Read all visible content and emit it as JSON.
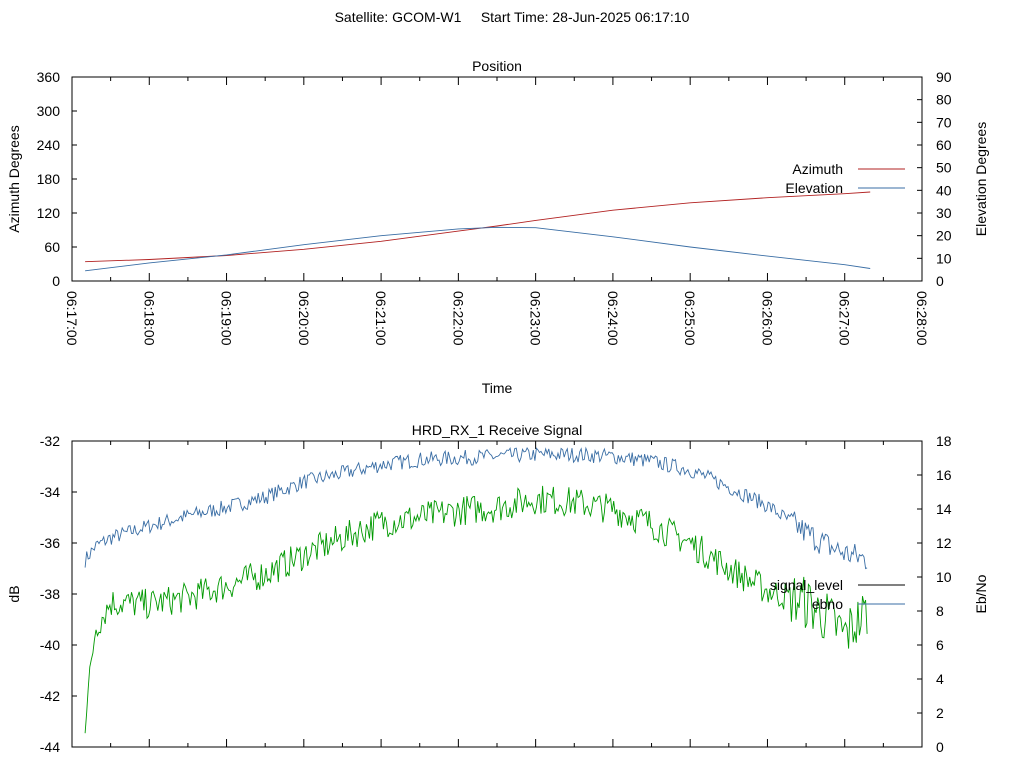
{
  "page": {
    "title": "Satellite: GCOM-W1     Start Time: 28-Jun-2025 06:17:10"
  },
  "chart_data": [
    {
      "type": "line",
      "title": "Position",
      "xlabel": "Time",
      "ylabel": "Azimuth Degrees",
      "y2label": "Elevation Degrees",
      "x_ticks": [
        "06:17:00",
        "06:18:00",
        "06:19:00",
        "06:20:00",
        "06:21:00",
        "06:22:00",
        "06:23:00",
        "06:24:00",
        "06:25:00",
        "06:26:00",
        "06:27:00",
        "06:28:00"
      ],
      "y_ticks": [
        "0",
        "60",
        "120",
        "180",
        "240",
        "300",
        "360"
      ],
      "y2_ticks": [
        "0",
        "10",
        "20",
        "30",
        "40",
        "50",
        "60",
        "70",
        "80",
        "90"
      ],
      "xlim_minutes": [
        0,
        11
      ],
      "ylim": [
        0,
        360
      ],
      "y2lim": [
        0,
        90
      ],
      "grid": false,
      "legend_position": "right",
      "x_minutes": [
        0.17,
        1,
        2,
        3,
        4,
        5,
        5.5,
        6,
        7,
        8,
        9,
        10,
        10.33
      ],
      "series": [
        {
          "name": "Azimuth",
          "axis": "left",
          "color": "#b22222",
          "values": [
            34,
            38,
            45,
            56,
            70,
            88,
            97,
            107,
            125,
            138,
            147,
            154,
            157
          ]
        },
        {
          "name": "Elevation",
          "axis": "right",
          "color": "#3a6ea5",
          "values": [
            4.5,
            8,
            11.5,
            16,
            20,
            23,
            23.7,
            23.5,
            19.5,
            15,
            11,
            7.2,
            5.5
          ]
        }
      ]
    },
    {
      "type": "line",
      "title": "HRD_RX_1 Receive Signal",
      "ylabel": "dB",
      "y2label": "Eb/No",
      "y_ticks": [
        "-32",
        "-34",
        "-36",
        "-38",
        "-40",
        "-42",
        "-44"
      ],
      "y2_ticks": [
        "0",
        "2",
        "4",
        "6",
        "8",
        "10",
        "12",
        "14",
        "16",
        "18"
      ],
      "xlim_minutes": [
        0,
        11
      ],
      "ylim": [
        -44,
        -32
      ],
      "y2lim": [
        0,
        18
      ],
      "grid": false,
      "legend_position": "right",
      "x_minutes": [
        0.17,
        0.3,
        0.5,
        1,
        1.5,
        2,
        2.5,
        3,
        3.5,
        4,
        4.5,
        5,
        5.5,
        6,
        6.5,
        7,
        7.5,
        8,
        8.5,
        9,
        9.5,
        9.8,
        10,
        10.3
      ],
      "series": [
        {
          "name": "signal_level",
          "axis": "left",
          "color": "#000000",
          "values": []
        },
        {
          "name": "ebno",
          "axis": "right",
          "color": "#3a6ea5",
          "values": [
            11,
            11.8,
            12.3,
            13,
            13.6,
            14.1,
            14.7,
            15.6,
            16.1,
            16.6,
            16.9,
            17,
            17.1,
            17.2,
            17.2,
            17.1,
            16.8,
            16.3,
            15.3,
            14.2,
            12.6,
            11.8,
            11.4,
            11
          ]
        },
        {
          "name": "ebno",
          "axis": "right",
          "color": "#009900",
          "values": [
            1.5,
            7,
            8.5,
            8.4,
            8.8,
            9.5,
            10.2,
            11.3,
            12.3,
            13.2,
            13.5,
            13.9,
            14.1,
            14.6,
            14.4,
            14,
            13.1,
            12,
            10.5,
            9.2,
            8.5,
            7.5,
            6.6,
            8
          ]
        }
      ]
    }
  ]
}
